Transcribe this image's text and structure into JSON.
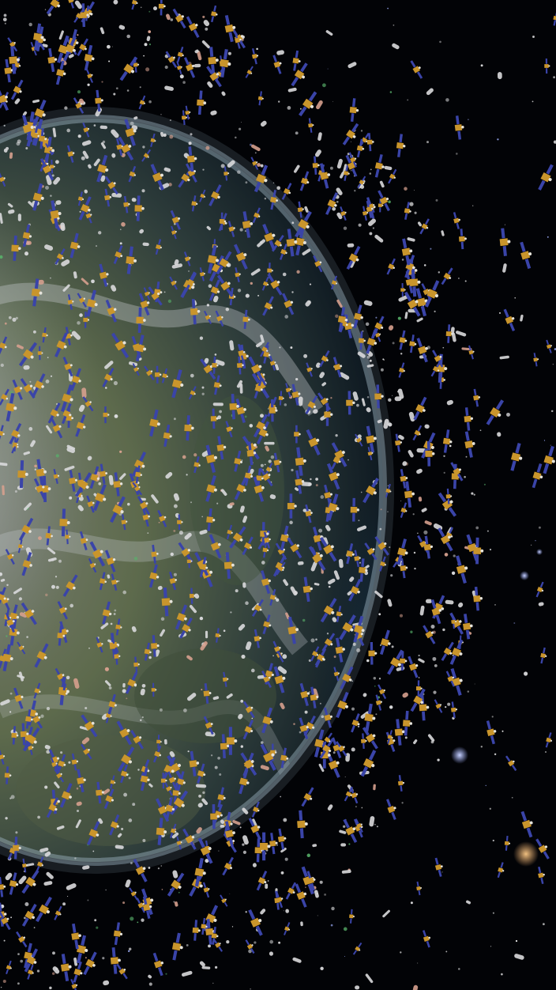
{
  "scene": {
    "subject": "earth-with-orbital-satellites-and-debris",
    "colors": {
      "space": "#020306",
      "atmosphere": "#9fb6c4",
      "ocean": "#1a2f3e",
      "land": "#5d6a4c",
      "cloud": "#c7cdd2",
      "solar_panel": "#3a44a8",
      "satellite_body": "#c9952c",
      "debris": "#d9d9db",
      "debris_pink": "#d6a08e",
      "debris_green": "#58b06a",
      "star_warm": "#e7a86b",
      "star_cool": "#9fb0ff"
    },
    "density": {
      "satellites": 700,
      "debris_cylinders": 380,
      "fragments": 500,
      "stars": 220
    }
  }
}
